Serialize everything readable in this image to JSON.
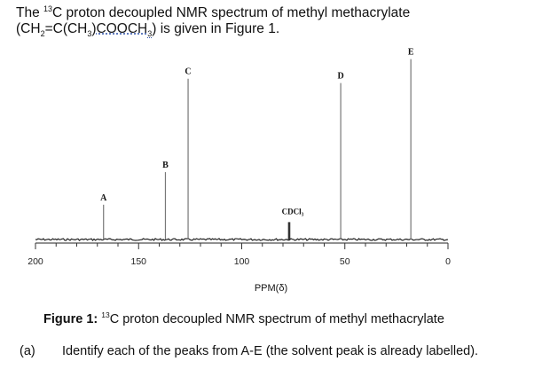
{
  "intro": {
    "line1_a": "The ",
    "line1_sup": "13",
    "line1_b": "C proton decoupled NMR spectrum of methyl methacrylate",
    "line2_a": "(CH",
    "line2_sub1": "2",
    "line2_b": "=C(CH",
    "line2_sub2": "3",
    "line2_link": ")COOCH",
    "line2_sub3": "3",
    "line2_c": ") is given in Figure 1."
  },
  "caption": {
    "label": "Figure 1:",
    "sup": "13",
    "text": "C proton decoupled NMR spectrum of methyl methacrylate"
  },
  "question": {
    "marker": "(a)",
    "text": "Identify each of the peaks from A-E (the solvent peak is already labelled)."
  },
  "chart_data": {
    "type": "line",
    "xlabel": "PPM(δ)",
    "xlim": [
      200,
      0
    ],
    "ylim": [
      0,
      1
    ],
    "tick_labels": [
      "200",
      "150",
      "100",
      "50",
      "0"
    ],
    "tick_values": [
      200,
      150,
      100,
      50,
      0
    ],
    "minor_tick_step": 10,
    "peaks": [
      {
        "label": "A",
        "ppm": 167,
        "height": 0.16
      },
      {
        "label": "B",
        "ppm": 137,
        "height": 0.31
      },
      {
        "label": "C",
        "ppm": 126,
        "height": 0.74
      },
      {
        "label": "D",
        "ppm": 52,
        "height": 0.72
      },
      {
        "label": "E",
        "ppm": 18,
        "height": 0.83
      }
    ],
    "solvent": {
      "label": "CDCl₃",
      "ppm": 77,
      "height": 0.08
    }
  }
}
